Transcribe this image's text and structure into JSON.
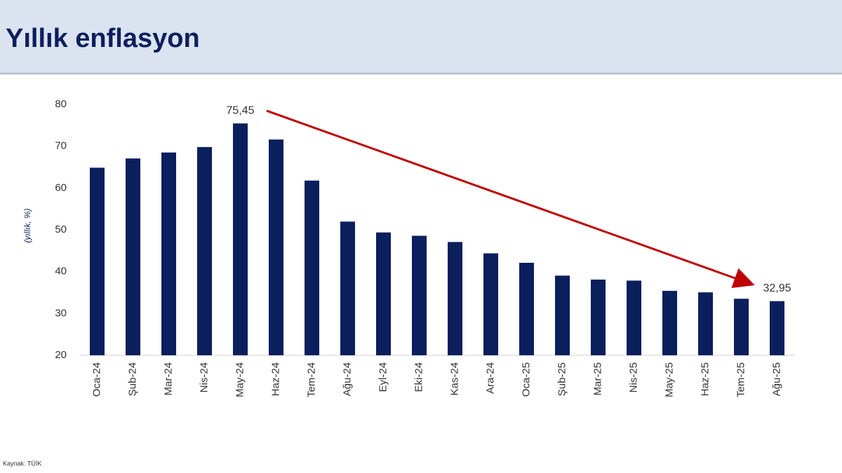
{
  "chart_data": {
    "type": "bar",
    "title": "Yıllık enflasyon",
    "y_label": "(yıllık, %)",
    "source": "Kaynak: TÜİK",
    "categories": [
      "Oca-24",
      "Şub-24",
      "Mar-24",
      "Nis-24",
      "May-24",
      "Haz-24",
      "Tem-24",
      "Ağu-24",
      "Eyl-24",
      "Eki-24",
      "Kas-24",
      "Ara-24",
      "Oca-25",
      "Şub-25",
      "Mar-25",
      "Nis-25",
      "May-25",
      "Haz-25",
      "Tem-25",
      "Ağu-25"
    ],
    "values": [
      64.86,
      67.07,
      68.5,
      69.8,
      75.45,
      71.6,
      61.78,
      51.97,
      49.38,
      48.58,
      47.09,
      44.38,
      42.12,
      39.05,
      38.1,
      37.86,
      35.41,
      35.05,
      33.52,
      32.95
    ],
    "value_labels": [
      null,
      null,
      null,
      null,
      "75,45",
      null,
      null,
      null,
      null,
      null,
      null,
      null,
      null,
      null,
      null,
      null,
      null,
      null,
      null,
      "32,95"
    ],
    "color": "#0a1f5c",
    "ylim": [
      20,
      80
    ],
    "yticks": [
      20,
      30,
      40,
      50,
      60,
      70,
      80
    ],
    "grid": false
  }
}
